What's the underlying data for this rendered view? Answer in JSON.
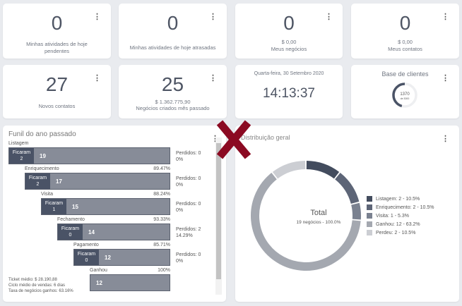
{
  "cards": [
    {
      "value": "0",
      "line1": "Minhas atividades de hoje",
      "line2": "pendentes"
    },
    {
      "value": "0",
      "line1": "Minhas atividades de hoje atrasadas",
      "line2": ""
    },
    {
      "value": "0",
      "line1": "$ 0,00",
      "line2": "Meus negócios"
    },
    {
      "value": "0",
      "line1": "$ 0,00",
      "line2": "Meus contatos"
    },
    {
      "value": "27",
      "line1": "",
      "line2": "Novos contatos"
    },
    {
      "value": "25",
      "line1": "$ 1.362.775,90",
      "line2": "Negócios criados mês passado"
    }
  ],
  "clock": {
    "date": "Quarta-feira, 30 Setembro 2020",
    "time": "14:13:37"
  },
  "clients": {
    "title": "Base de clientes",
    "value": "1370",
    "of": "de 3000",
    "fraction": 0.4567,
    "color": "#4a5366"
  },
  "funnel": {
    "title": "Funil do ano passado",
    "kept_label": "Ficaram",
    "stages": [
      {
        "name": "Listagem",
        "pct": "",
        "kept": "2",
        "count": "19",
        "lost": "Perdidos: 0",
        "lost_pct": "0%"
      },
      {
        "name": "Enriquecimento",
        "pct": "89.47%",
        "kept": "2",
        "count": "17",
        "lost": "Perdidos: 0",
        "lost_pct": "0%"
      },
      {
        "name": "Visita",
        "pct": "88.24%",
        "kept": "1",
        "count": "15",
        "lost": "Perdidos: 0",
        "lost_pct": "0%"
      },
      {
        "name": "Fechamento",
        "pct": "93.33%",
        "kept": "0",
        "count": "14",
        "lost": "Perdidos: 2",
        "lost_pct": "14.29%"
      },
      {
        "name": "Pagamento",
        "pct": "85.71%",
        "kept": "0",
        "count": "12",
        "lost": "Perdidos: 0",
        "lost_pct": "0%"
      },
      {
        "name": "Ganhou",
        "pct": "100%",
        "count": "12"
      }
    ],
    "stats": [
      "Ticket médio: $ 28.190,88",
      "Ciclo médio de vendas: 6 dias",
      "Taxa de negócios ganhos: 63.16%"
    ]
  },
  "distribution": {
    "title": "Distribuição geral",
    "center_title": "Total",
    "center_sub": "19 negócios - 100.0%",
    "slices": [
      {
        "label": "Listagem: 2 - 10.5%",
        "value": 2,
        "color": "#434c5e"
      },
      {
        "label": "Enriquecimento: 2 - 10.5%",
        "value": 2,
        "color": "#5d6577"
      },
      {
        "label": "Visita: 1 - 5.3%",
        "value": 1,
        "color": "#7a8190"
      },
      {
        "label": "Ganhou: 12 - 63.2%",
        "value": 12,
        "color": "#a4a8b0"
      },
      {
        "label": "Perdeu: 2 - 10.5%",
        "value": 2,
        "color": "#ccced3"
      }
    ]
  },
  "close_mark_color": "#8b0a22"
}
